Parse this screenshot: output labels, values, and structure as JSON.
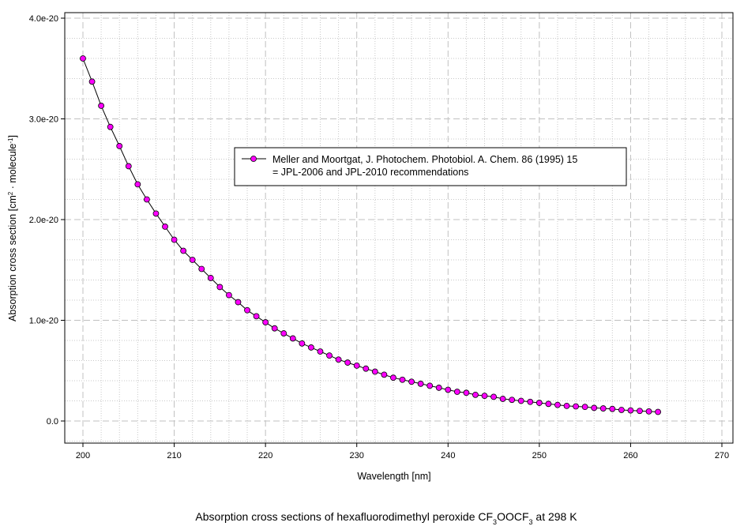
{
  "chart_data": {
    "type": "line",
    "title": "Absorption cross sections of hexafluorodimethyl peroxide CF3OOCF3 at 298 K",
    "title_parts": {
      "pre": "Absorption cross sections of hexafluorodimethyl peroxide CF",
      "sub1": "3",
      "mid": "OOCF",
      "sub2": "3",
      "post": " at 298 K"
    },
    "xlabel": "Wavelength [nm]",
    "ylabel": "Absorption cross section [cm2 · molecule-1]",
    "ylabel_parts": {
      "pre": "Absorption cross section [cm",
      "sup1": "2",
      "mid": " · molecule",
      "sup2": "-1",
      "post": "]"
    },
    "xlim": [
      198,
      270
    ],
    "ylim": [
      -0.2,
      4.0
    ],
    "y_unit_scale": 1e-20,
    "xticks": [
      200,
      210,
      220,
      230,
      240,
      250,
      260,
      270
    ],
    "yticks": [
      0,
      1,
      2,
      3,
      4
    ],
    "ytick_labels": [
      "0.0",
      "1.0e-20",
      "2.0e-20",
      "3.0e-20",
      "4.0e-20"
    ],
    "grid": true,
    "legend_placement": "center",
    "series": [
      {
        "name": "Meller and Moortgat, J. Photochem. Photobiol. A. Chem. 86 (1995) 15 = JPL-2006 and JPL-2010 recommendations",
        "legend_lines": [
          "Meller and Moortgat, J. Photochem. Photobiol. A. Chem. 86 (1995) 15",
          "= JPL-2006 and JPL-2010 recommendations"
        ],
        "color": "#ff00ff",
        "line_color": "#000000",
        "x": [
          200,
          201,
          202,
          203,
          204,
          205,
          206,
          207,
          208,
          209,
          210,
          211,
          212,
          213,
          214,
          215,
          216,
          217,
          218,
          219,
          220,
          221,
          222,
          223,
          224,
          225,
          226,
          227,
          228,
          229,
          230,
          231,
          232,
          233,
          234,
          235,
          236,
          237,
          238,
          239,
          240,
          241,
          242,
          243,
          244,
          245,
          246,
          247,
          248,
          249,
          250,
          251,
          252,
          253,
          254,
          255,
          256,
          257,
          258,
          259,
          260,
          261,
          262,
          263
        ],
        "values": [
          3.6,
          3.37,
          3.13,
          2.92,
          2.73,
          2.53,
          2.35,
          2.2,
          2.06,
          1.93,
          1.8,
          1.69,
          1.6,
          1.51,
          1.42,
          1.33,
          1.25,
          1.18,
          1.1,
          1.04,
          0.98,
          0.92,
          0.87,
          0.82,
          0.77,
          0.73,
          0.69,
          0.65,
          0.61,
          0.58,
          0.55,
          0.52,
          0.49,
          0.46,
          0.43,
          0.41,
          0.39,
          0.37,
          0.35,
          0.33,
          0.31,
          0.29,
          0.28,
          0.26,
          0.25,
          0.24,
          0.22,
          0.21,
          0.2,
          0.19,
          0.18,
          0.17,
          0.16,
          0.15,
          0.145,
          0.14,
          0.13,
          0.125,
          0.12,
          0.11,
          0.105,
          0.1,
          0.095,
          0.09
        ]
      }
    ]
  }
}
